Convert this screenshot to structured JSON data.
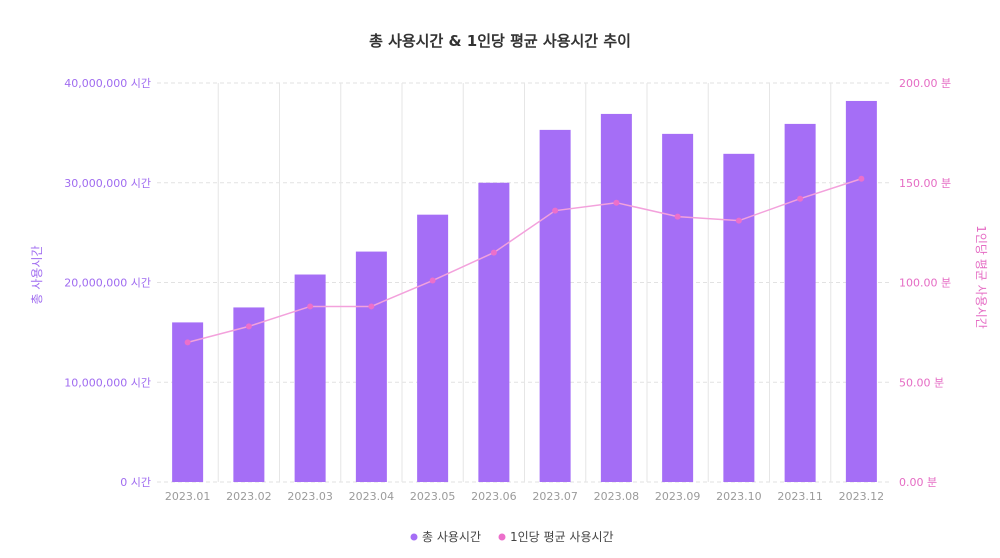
{
  "chart_data": {
    "type": "bar",
    "title": "총 사용시간 & 1인당 평균 사용시간 추이",
    "categories": [
      "2023.01",
      "2023.02",
      "2023.03",
      "2023.04",
      "2023.05",
      "2023.06",
      "2023.07",
      "2023.08",
      "2023.09",
      "2023.10",
      "2023.11",
      "2023.12"
    ],
    "series": [
      {
        "name": "총 사용시간",
        "type": "bar",
        "axis": "left",
        "color": "#a56ef6",
        "values": [
          16000000,
          17500000,
          20800000,
          23100000,
          26800000,
          30000000,
          35300000,
          36900000,
          34900000,
          32900000,
          35900000,
          38200000
        ]
      },
      {
        "name": "1인당 평균 사용시간",
        "type": "line",
        "axis": "right",
        "color": "#f3a1dc",
        "point_color": "#ec6fcb",
        "values": [
          70,
          78,
          88,
          88,
          101,
          115,
          136,
          140,
          133,
          131,
          142,
          152
        ]
      }
    ],
    "ylabel": "총 사용시간",
    "y2label": "1인당 평균 사용시간",
    "ylim": [
      0,
      40000000
    ],
    "y2lim": [
      0,
      200
    ],
    "yticks": [
      "0 시간",
      "10,000,000 시간",
      "20,000,000 시간",
      "30,000,000 시간",
      "40,000,000 시간"
    ],
    "y2ticks": [
      "0.00 분",
      "50.00 분",
      "100.00 분",
      "150.00 분",
      "200.00 분"
    ],
    "grid": true,
    "legend": "bottom-center"
  }
}
